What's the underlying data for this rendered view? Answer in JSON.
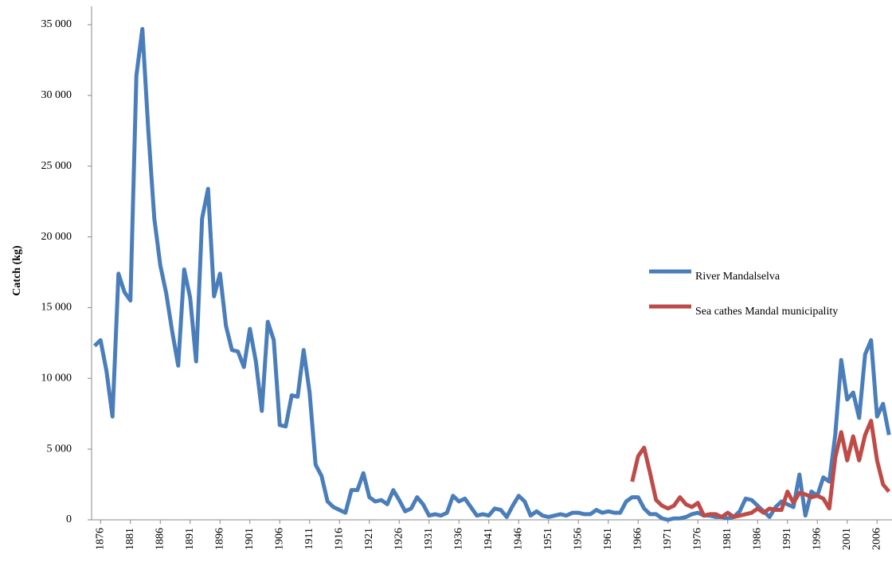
{
  "chart_data": {
    "type": "line",
    "y_label": "Catch (kg)",
    "x": [
      1875,
      1876,
      1877,
      1878,
      1879,
      1880,
      1881,
      1882,
      1883,
      1884,
      1885,
      1886,
      1887,
      1888,
      1889,
      1890,
      1891,
      1892,
      1893,
      1894,
      1895,
      1896,
      1897,
      1898,
      1899,
      1900,
      1901,
      1902,
      1903,
      1904,
      1905,
      1906,
      1907,
      1908,
      1909,
      1910,
      1911,
      1912,
      1913,
      1914,
      1915,
      1916,
      1917,
      1918,
      1919,
      1920,
      1921,
      1922,
      1923,
      1924,
      1925,
      1926,
      1927,
      1928,
      1929,
      1930,
      1931,
      1932,
      1933,
      1934,
      1935,
      1936,
      1937,
      1938,
      1939,
      1940,
      1941,
      1942,
      1943,
      1944,
      1945,
      1946,
      1947,
      1948,
      1949,
      1950,
      1951,
      1952,
      1953,
      1954,
      1955,
      1956,
      1957,
      1958,
      1959,
      1960,
      1961,
      1962,
      1963,
      1964,
      1965,
      1966,
      1967,
      1968,
      1969,
      1970,
      1971,
      1972,
      1973,
      1974,
      1975,
      1976,
      1977,
      1978,
      1979,
      1980,
      1981,
      1982,
      1983,
      1984,
      1985,
      1986,
      1987,
      1988,
      1989,
      1990,
      1991,
      1992,
      1993,
      1994,
      1995,
      1996,
      1997,
      1998,
      1999,
      2000,
      2001,
      2002,
      2003,
      2004,
      2005,
      2006,
      2007,
      2008
    ],
    "series": [
      {
        "name": "River Mandalselva",
        "color": "#4a7ebb",
        "values": [
          12300,
          12700,
          10500,
          7300,
          17400,
          16100,
          15500,
          31400,
          34700,
          27500,
          21300,
          18000,
          16000,
          13300,
          10900,
          17700,
          15700,
          11200,
          21300,
          23400,
          15800,
          17400,
          13700,
          12000,
          11900,
          10800,
          13500,
          11200,
          7700,
          14000,
          12700,
          6700,
          6600,
          8800,
          8700,
          12000,
          9000,
          3900,
          3100,
          1300,
          900,
          700,
          500,
          2100,
          2100,
          3300,
          1600,
          1300,
          1400,
          1100,
          2100,
          1400,
          600,
          800,
          1600,
          1100,
          300,
          400,
          300,
          500,
          1700,
          1300,
          1500,
          900,
          300,
          400,
          300,
          800,
          700,
          200,
          1000,
          1700,
          1300,
          300,
          600,
          300,
          200,
          300,
          400,
          300,
          500,
          500,
          400,
          400,
          700,
          500,
          600,
          500,
          500,
          1300,
          1600,
          1600,
          800,
          400,
          400,
          100,
          0,
          100,
          100,
          200,
          400,
          500,
          300,
          300,
          200,
          200,
          100,
          200,
          600,
          1500,
          1400,
          1000,
          600,
          200,
          900,
          1300,
          1100,
          900,
          3200,
          300,
          2000,
          1700,
          3000,
          2700,
          6000,
          11300,
          8500,
          9000,
          7200,
          11700,
          12700,
          7300,
          8200,
          6000
        ]
      },
      {
        "name": "Sea cathes Mandal municipality",
        "color": "#be4b48",
        "values": [
          null,
          null,
          null,
          null,
          null,
          null,
          null,
          null,
          null,
          null,
          null,
          null,
          null,
          null,
          null,
          null,
          null,
          null,
          null,
          null,
          null,
          null,
          null,
          null,
          null,
          null,
          null,
          null,
          null,
          null,
          null,
          null,
          null,
          null,
          null,
          null,
          null,
          null,
          null,
          null,
          null,
          null,
          null,
          null,
          null,
          null,
          null,
          null,
          null,
          null,
          null,
          null,
          null,
          null,
          null,
          null,
          null,
          null,
          null,
          null,
          null,
          null,
          null,
          null,
          null,
          null,
          null,
          null,
          null,
          null,
          null,
          null,
          null,
          null,
          null,
          null,
          null,
          null,
          null,
          null,
          null,
          null,
          null,
          null,
          null,
          null,
          null,
          null,
          null,
          null,
          2700,
          4500,
          5100,
          3300,
          1400,
          1000,
          800,
          1000,
          1600,
          1100,
          900,
          1200,
          300,
          400,
          400,
          200,
          500,
          200,
          300,
          400,
          500,
          800,
          500,
          800,
          700,
          700,
          2000,
          1200,
          1900,
          1800,
          1600,
          1700,
          1500,
          800,
          4400,
          6200,
          4200,
          5900,
          4200,
          6000,
          7000,
          4200,
          2500,
          2000
        ]
      }
    ],
    "xlim": [
      1874.5,
      2008.5
    ],
    "xticks": [
      1876,
      1881,
      1886,
      1891,
      1896,
      1901,
      1906,
      1911,
      1916,
      1921,
      1926,
      1931,
      1936,
      1941,
      1946,
      1951,
      1956,
      1961,
      1966,
      1971,
      1976,
      1981,
      1986,
      1991,
      1996,
      2001,
      2006
    ],
    "ylim": [
      0,
      35000
    ],
    "yticks": [
      0,
      {
        "value": 5000,
        "label": "5 000"
      },
      {
        "value": 10000,
        "label": "10 000"
      },
      {
        "value": 15000,
        "label": "15 000"
      },
      {
        "value": 20000,
        "label": "20 000"
      },
      {
        "value": 25000,
        "label": "25 000"
      },
      {
        "value": 30000,
        "label": "30 000"
      },
      {
        "value": 35000,
        "label": "35 000"
      }
    ],
    "grid": false
  }
}
